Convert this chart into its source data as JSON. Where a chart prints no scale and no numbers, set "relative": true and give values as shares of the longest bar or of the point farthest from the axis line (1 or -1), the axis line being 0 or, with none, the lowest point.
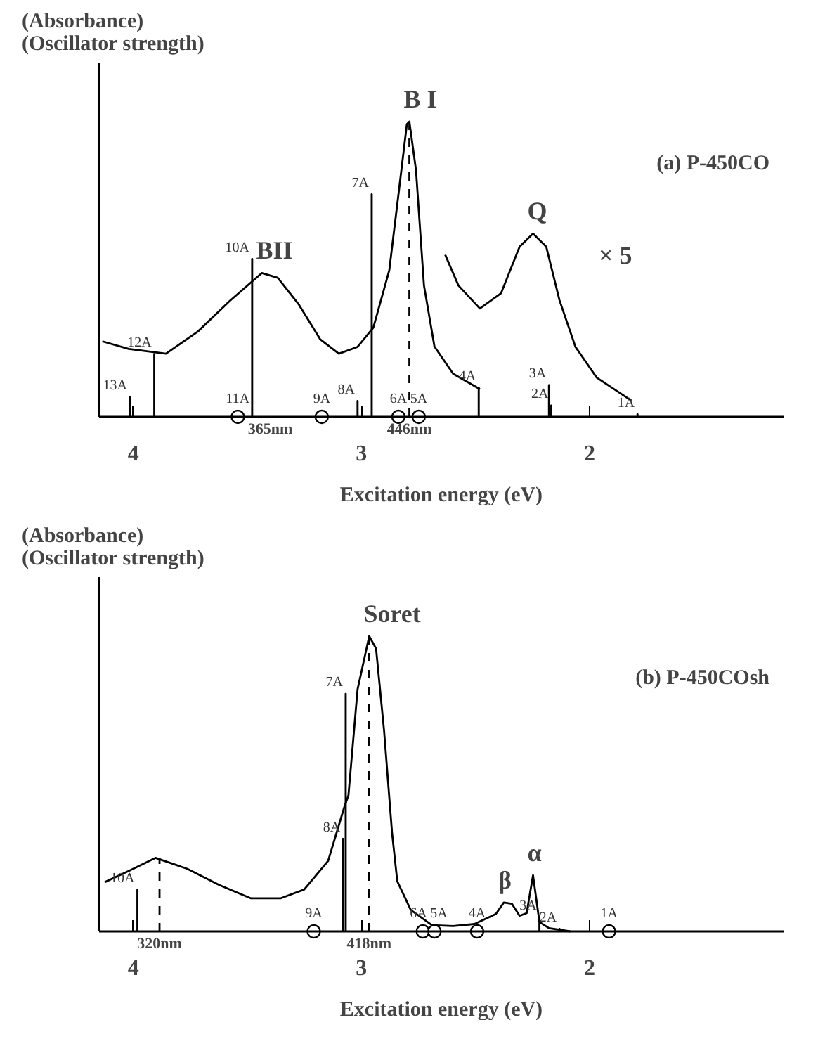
{
  "chart_data": [
    {
      "type": "line",
      "title": "(a) P-450CO",
      "xlabel": "Excitation energy (eV)",
      "ylabel": "(Absorbance)\n(Oscillator strength)",
      "relative": true,
      "xlim": [
        4.15,
        1.15
      ],
      "xticks": [
        4,
        3,
        2
      ],
      "grid": false,
      "series": [
        {
          "color": "#000000",
          "x": [
            4.136,
            4.02,
            3.857,
            3.717,
            3.577,
            3.437,
            3.367,
            3.274,
            3.181,
            3.099,
            3.017,
            2.948,
            2.878,
            2.831,
            2.801,
            2.79,
            2.761,
            2.726,
            2.68,
            2.598,
            2.481
          ],
          "values": [
            0.256,
            0.23,
            0.214,
            0.289,
            0.393,
            0.487,
            0.471,
            0.38,
            0.263,
            0.214,
            0.237,
            0.302,
            0.497,
            0.797,
            0.991,
            1.0,
            0.836,
            0.445,
            0.238,
            0.146,
            0.094
          ]
        },
        {
          "color": "#000000",
          "x": [
            2.633,
            2.575,
            2.481,
            2.388,
            2.307,
            2.248,
            2.19,
            2.132,
            2.062,
            1.969,
            1.817
          ],
          "values": [
            0.549,
            0.445,
            0.367,
            0.419,
            0.576,
            0.621,
            0.576,
            0.395,
            0.237,
            0.133,
            0.055
          ]
        },
        {
          "line_style": "dashed",
          "color": "#000000",
          "x": [
            2.79,
            2.79
          ],
          "values": [
            0,
            1.0
          ]
        },
        {
          "type": "bar",
          "color": "#000000",
          "x": [
            4.015,
            3.908,
            3.479,
            3.017,
            2.955,
            2.486,
            2.178,
            2.168,
            1.79
          ],
          "values": [
            0.068,
            0.214,
            0.536,
            0.055,
            0.755,
            0.1,
            0.109,
            0.04,
            0.01
          ]
        },
        {
          "type": "scatter",
          "marker": "circle",
          "color": "#000000",
          "x": [
            3.542,
            3.174,
            2.838,
            2.749
          ],
          "values": [
            0,
            0,
            0,
            0
          ]
        }
      ],
      "annotations": [
        {
          "text": "B I",
          "x": 2.79,
          "y": 1.0
        },
        {
          "text": "BII",
          "x": 3.437,
          "y": 0.487
        },
        {
          "text": "Q",
          "x": 2.248,
          "y": 0.621
        },
        "× 5",
        "365nm",
        {
          "text": "446nm",
          "x": 2.79,
          "y": 0
        },
        {
          "text": "13A",
          "x": 4.015,
          "y": 0.068
        },
        {
          "text": "12A",
          "x": 3.908,
          "y": 0.214
        },
        {
          "text": "10A",
          "x": 3.479,
          "y": 0.536
        },
        {
          "text": "8A",
          "x": 3.017,
          "y": 0.055
        },
        {
          "text": "7A",
          "x": 2.955,
          "y": 0.755
        },
        {
          "text": "4A",
          "x": 2.486,
          "y": 0.1
        },
        {
          "text": "3A",
          "x": 2.178,
          "y": 0.109
        },
        {
          "text": "2A",
          "x": 2.168,
          "y": 0.04
        },
        {
          "text": "1A",
          "x": 1.79,
          "y": 0.01
        },
        {
          "text": "11A",
          "x": 3.542,
          "y": 0
        },
        {
          "text": "9A",
          "x": 3.174,
          "y": 0
        },
        {
          "text": "6A",
          "x": 2.838,
          "y": 0
        },
        {
          "text": "5A",
          "x": 2.749,
          "y": 0
        }
      ]
    },
    {
      "type": "line",
      "title": "(b) P-450COsh",
      "xlabel": "Excitation energy (eV)",
      "ylabel": "(Absorbance)\n(Oscillator strength)",
      "relative": true,
      "xlim": [
        4.15,
        1.15
      ],
      "xticks": [
        4,
        3,
        2
      ],
      "grid": false,
      "series": [
        {
          "color": "#000000",
          "x": [
            4.125,
            4.02,
            3.903,
            3.763,
            3.623,
            3.484,
            3.355,
            3.251,
            3.146,
            3.076,
            3.057,
            3.017,
            2.966,
            2.936,
            2.901,
            2.866,
            2.843,
            2.784,
            2.691,
            2.598,
            2.505,
            2.411,
            2.376,
            2.341,
            2.307,
            2.276,
            2.248,
            2.22,
            2.178,
            2.085
          ],
          "values": [
            0.167,
            0.205,
            0.249,
            0.212,
            0.157,
            0.112,
            0.112,
            0.142,
            0.239,
            0.419,
            0.461,
            0.82,
            1.0,
            0.958,
            0.681,
            0.335,
            0.17,
            0.073,
            0.021,
            0.018,
            0.025,
            0.059,
            0.098,
            0.094,
            0.053,
            0.062,
            0.19,
            0.032,
            0.011,
            0.0
          ]
        },
        {
          "line_style": "dashed",
          "color": "#000000",
          "x": [
            3.885,
            3.885
          ],
          "values": [
            0,
            0.249
          ]
        },
        {
          "line_style": "dashed",
          "color": "#000000",
          "x": [
            2.966,
            2.966
          ],
          "values": [
            0,
            1.0
          ]
        },
        {
          "type": "bar",
          "color": "#000000",
          "x": [
            3.982,
            3.081,
            3.069,
            2.22,
            2.132
          ],
          "values": [
            0.142,
            0.315,
            0.806,
            0.05,
            0.01
          ]
        },
        {
          "type": "scatter",
          "marker": "circle",
          "color": "#000000",
          "x": [
            3.209,
            2.731,
            2.68,
            2.493,
            1.915
          ],
          "values": [
            0,
            0,
            0,
            0,
            0
          ]
        }
      ],
      "annotations": [
        {
          "text": "Soret",
          "x": 2.966,
          "y": 1.0
        },
        {
          "text": "β",
          "x": 2.376,
          "y": 0.098
        },
        {
          "text": "α",
          "x": 2.248,
          "y": 0.19
        },
        {
          "text": "320nm",
          "x": 3.885,
          "y": 0
        },
        {
          "text": "418nm",
          "x": 2.966,
          "y": 0
        },
        {
          "text": "10A",
          "x": 3.982,
          "y": 0.142
        },
        {
          "text": "8A",
          "x": 3.081,
          "y": 0.315
        },
        {
          "text": "7A",
          "x": 3.069,
          "y": 0.806
        },
        {
          "text": "3A",
          "x": 2.22,
          "y": 0.05
        },
        {
          "text": "2A",
          "x": 2.132,
          "y": 0.01
        },
        {
          "text": "9A",
          "x": 3.209,
          "y": 0
        },
        {
          "text": "6A",
          "x": 2.731,
          "y": 0
        },
        {
          "text": "5A",
          "x": 2.68,
          "y": 0
        },
        {
          "text": "4A",
          "x": 2.493,
          "y": 0
        },
        {
          "text": "1A",
          "x": 1.915,
          "y": 0
        }
      ]
    }
  ]
}
